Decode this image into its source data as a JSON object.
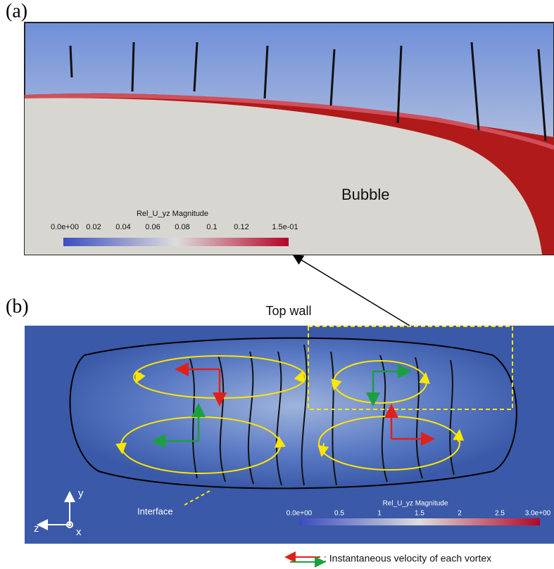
{
  "panel_a": {
    "label": "(a)",
    "bubble_label": "Bubble",
    "colorbar": {
      "title": "Rel_U_yz Magnitude",
      "ticks": [
        "0.0e+00",
        "0.02",
        "0.04",
        "0.06",
        "0.08",
        "0.1",
        "0.12",
        "1.5e-01"
      ]
    }
  },
  "panel_b": {
    "label": "(b)",
    "top_wall": "Top wall",
    "interface": "Interface",
    "axes": {
      "y": "y",
      "z": "z",
      "x": "x"
    },
    "colorbar": {
      "title": "Rel_U_yz Magnitude",
      "ticks": [
        "0.0e+00",
        "0.5",
        "1",
        "1.5",
        "2",
        "2.5",
        "3.0e+00"
      ]
    }
  },
  "legend": ": Instantaneous velocity of each vortex"
}
